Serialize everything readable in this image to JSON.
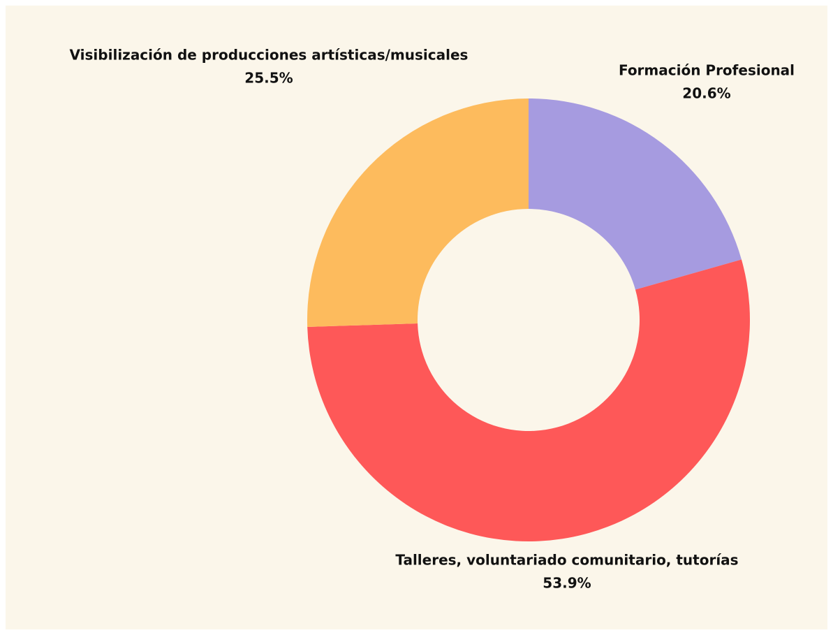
{
  "chart_data": {
    "type": "donut",
    "categories": [
      "Formación Profesional",
      "Talleres, voluntariado comunitario, tutorías",
      "Visibilización de producciones artísticas/musicales"
    ],
    "values": [
      20.6,
      53.9,
      25.5
    ],
    "value_labels": [
      "20.6%",
      "53.9%",
      "25.5%"
    ],
    "colors": [
      "#a69be0",
      "#fe5858",
      "#fdbb5d"
    ]
  }
}
